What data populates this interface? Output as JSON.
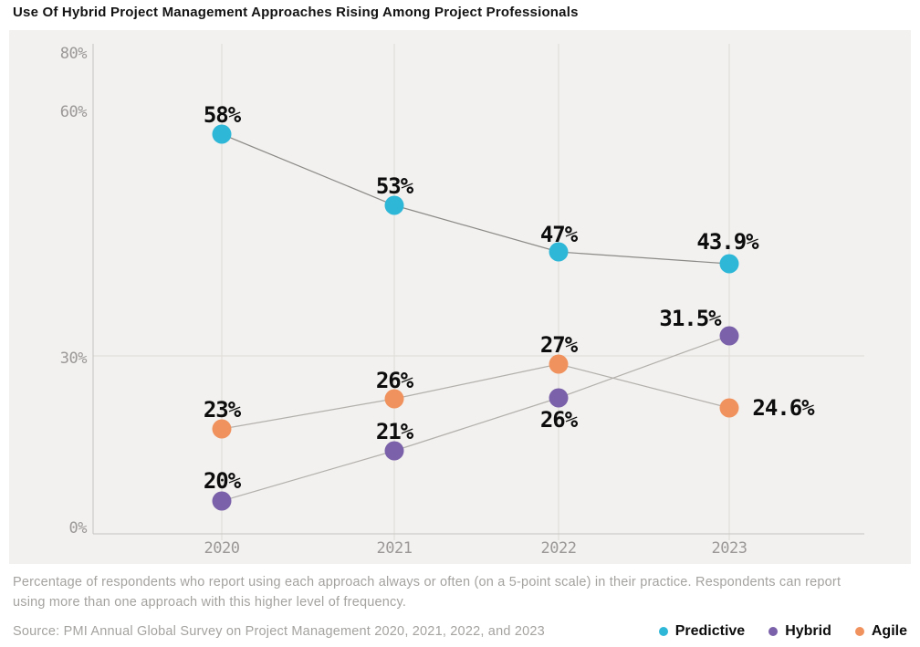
{
  "title": "Use Of Hybrid Project Management Approaches Rising Among Project Professionals",
  "chart_data": {
    "type": "line",
    "title": "Use Of Hybrid Project Management Approaches Rising Among Project Professionals",
    "x_categories": [
      "2020",
      "2021",
      "2022",
      "2023"
    ],
    "series": [
      {
        "name": "Predictive",
        "color": "#2fb7d8",
        "values": [
          58,
          53,
          47,
          43.9
        ],
        "point_labels": [
          "58%",
          "53%",
          "47%",
          "43.9%"
        ]
      },
      {
        "name": "Hybrid",
        "color": "#7a61a9",
        "values": [
          20,
          21,
          26,
          31.5
        ],
        "point_labels": [
          "20%",
          "21%",
          "26%",
          "31.5%"
        ]
      },
      {
        "name": "Agile",
        "color": "#f0925e",
        "values": [
          23,
          26,
          27,
          24.6
        ],
        "point_labels": [
          "23%",
          "26%",
          "27%",
          "24.6%"
        ]
      }
    ],
    "y_ticks": [
      "80%",
      "60%",
      "30%",
      "0%"
    ],
    "ylim": [
      0,
      80
    ],
    "grid": {
      "horizontal_gridline_at": "30%",
      "vertical_gridline_at_each_year": true
    },
    "legend_position": "bottom-right"
  },
  "footnote": {
    "line1": "Percentage of respondents who report using each approach always or often (on a 5-point scale) in their practice. Respondents can report",
    "line2": "using more than one approach with this higher level of frequency."
  },
  "source_label": "Source: PMI Annual Global Survey on Project Management 2020, 2021, 2022, and 2023",
  "legend": {
    "items": [
      {
        "label": "Predictive",
        "color": "#2fb7d8"
      },
      {
        "label": "Hybrid",
        "color": "#7a61a9"
      },
      {
        "label": "Agile",
        "color": "#f0925e"
      }
    ]
  },
  "colors": {
    "chart_background": "#f2f1ef",
    "gridline": "#dedbd7",
    "axis_line": "#c6c4c1",
    "tick_text": "#9b9897",
    "data_label_text": "#0d0d0d",
    "muted_text": "#a5a3a0",
    "title_text": "#141414",
    "predictive_line": "#8c8a87",
    "secondary_line": "#b3b0ac"
  }
}
